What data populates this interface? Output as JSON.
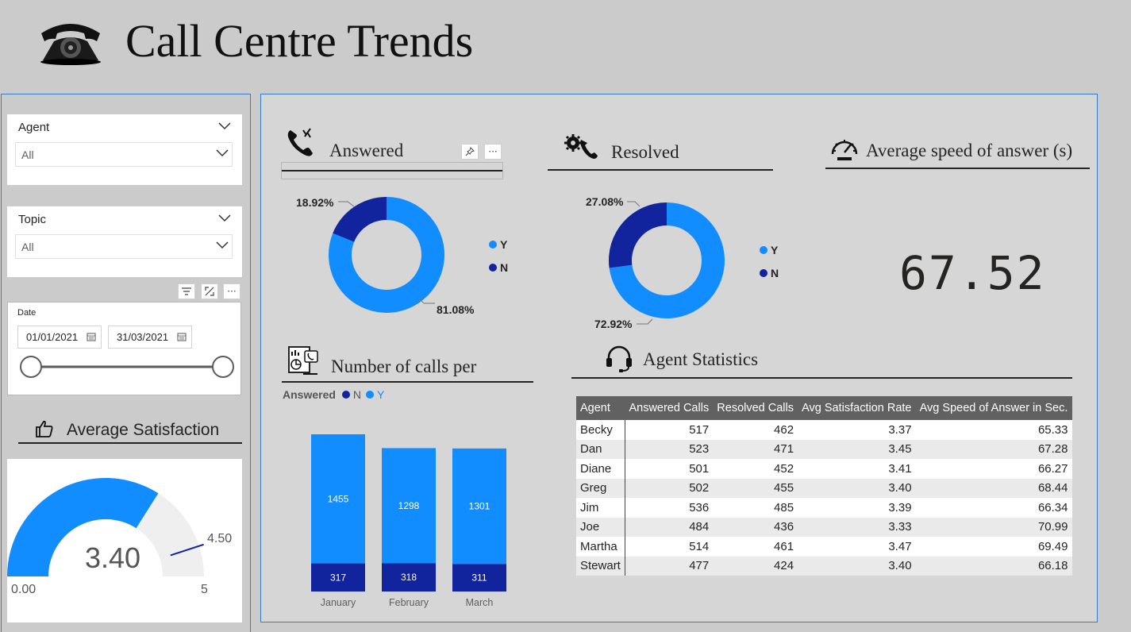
{
  "header": {
    "title": "Call Centre Trends"
  },
  "filters": {
    "agent": {
      "label": "Agent",
      "value": "All"
    },
    "topic": {
      "label": "Topic",
      "value": "All"
    },
    "date": {
      "label": "Date",
      "start": "01/01/2021",
      "end": "31/03/2021"
    }
  },
  "satisfaction": {
    "title": "Average Satisfaction",
    "value": "3.40",
    "min_label": "0.00",
    "max_label": "5",
    "target_label": "4.50",
    "gauge_value": 3.4,
    "gauge_min": 0,
    "gauge_max": 5,
    "gauge_target": 4.5
  },
  "answered": {
    "title": "Answered"
  },
  "resolved": {
    "title": "Resolved"
  },
  "speed": {
    "title": "Average speed of answer (s)",
    "value": "67.52"
  },
  "calls_chart": {
    "title": "Number of calls per",
    "legend_label": "Answered"
  },
  "agent_stats": {
    "title": "Agent Statistics",
    "columns": [
      "Agent",
      "Answered Calls",
      "Resolved Calls",
      "Avg Satisfaction Rate",
      "Avg Speed of Answer in Sec."
    ],
    "rows": [
      [
        "Becky",
        "517",
        "462",
        "3.37",
        "65.33"
      ],
      [
        "Dan",
        "523",
        "471",
        "3.45",
        "67.28"
      ],
      [
        "Diane",
        "501",
        "452",
        "3.41",
        "66.27"
      ],
      [
        "Greg",
        "502",
        "455",
        "3.40",
        "68.44"
      ],
      [
        "Jim",
        "536",
        "485",
        "3.39",
        "66.34"
      ],
      [
        "Joe",
        "484",
        "436",
        "3.33",
        "70.99"
      ],
      [
        "Martha",
        "514",
        "461",
        "3.47",
        "69.49"
      ],
      [
        "Stewart",
        "477",
        "424",
        "3.40",
        "66.18"
      ]
    ]
  },
  "colors": {
    "light_blue": "#118DFF",
    "dark_blue": "#12239E",
    "gauge_bg": "#f0efef"
  },
  "icons": {
    "header": "telephone-icon",
    "answered": "phone-ringing-icon",
    "resolved": "phone-gear-icon",
    "speed": "speedometer-icon",
    "calls": "report-icon",
    "agents": "headset-icon",
    "satisfaction": "thumbs-up-icon"
  },
  "chart_data": [
    {
      "type": "pie",
      "variant": "donut",
      "title": "Answered",
      "categories": [
        "Y",
        "N"
      ],
      "values": [
        81.08,
        18.92
      ],
      "labels": [
        "81.08%",
        "18.92%"
      ],
      "legend": "right"
    },
    {
      "type": "pie",
      "variant": "donut",
      "title": "Resolved",
      "categories": [
        "Y",
        "N"
      ],
      "values": [
        72.92,
        27.08
      ],
      "labels": [
        "72.92%",
        "27.08%"
      ],
      "legend": "right"
    },
    {
      "type": "bar",
      "stacked": true,
      "title": "Number of calls per",
      "legend_title": "Answered",
      "legend": "top-left",
      "categories": [
        "January",
        "February",
        "March"
      ],
      "series": [
        {
          "name": "N",
          "values": [
            317,
            318,
            311
          ]
        },
        {
          "name": "Y",
          "values": [
            1455,
            1298,
            1301
          ]
        }
      ]
    }
  ]
}
